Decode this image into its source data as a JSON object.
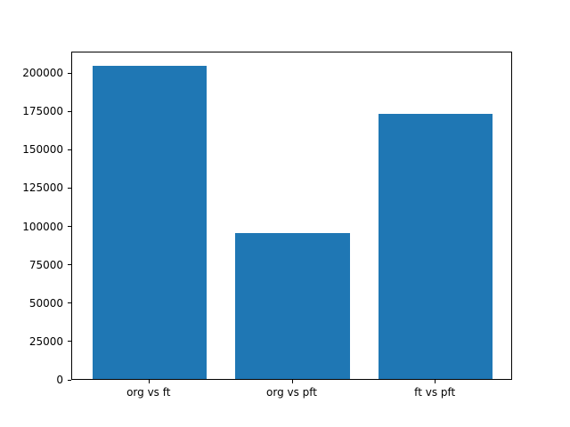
{
  "chart_data": {
    "type": "bar",
    "categories": [
      "org vs ft",
      "org vs pft",
      "ft vs pft"
    ],
    "values": [
      204000,
      95000,
      173000
    ],
    "title": "",
    "xlabel": "",
    "ylabel": "",
    "ylim": [
      0,
      214000
    ],
    "yticks": [
      0,
      25000,
      50000,
      75000,
      100000,
      125000,
      150000,
      175000,
      200000
    ],
    "bar_color": "#1f77b4",
    "bar_width_fraction": 0.8,
    "grid": false,
    "legend": false
  }
}
